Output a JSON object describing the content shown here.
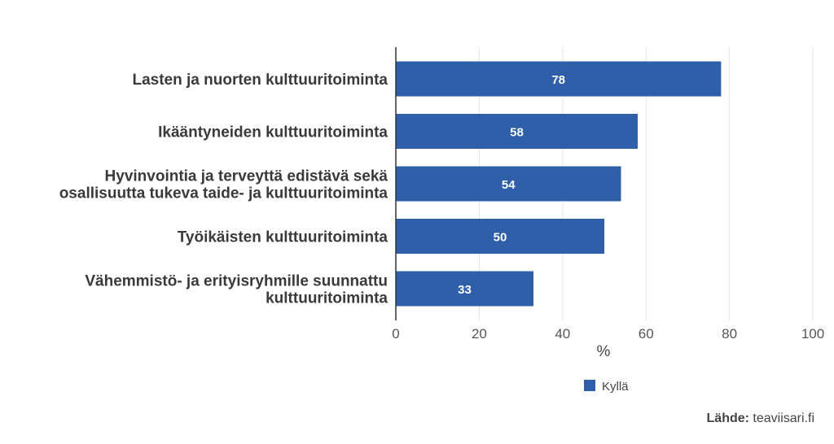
{
  "chart_data": {
    "type": "bar",
    "orientation": "horizontal",
    "categories": [
      [
        "Lasten ja nuorten kulttuuritoiminta"
      ],
      [
        "Ikääntyneiden kulttuuritoiminta"
      ],
      [
        "Hyvinvointia ja terveyttä edistävä sekä",
        "osallisuutta tukeva taide- ja kulttuuritoiminta"
      ],
      [
        "Työikäisten kulttuuritoiminta"
      ],
      [
        "Vähemmistö- ja erityisryhmille suunnattu",
        "kulttuuritoiminta"
      ]
    ],
    "series": [
      {
        "name": "Kyllä",
        "values": [
          78,
          58,
          54,
          50,
          33
        ],
        "color": "#2e5fa8"
      }
    ],
    "xlabel": "%",
    "xlim": [
      0,
      100
    ],
    "xticks": [
      "0",
      "20",
      "40",
      "60",
      "80",
      "100"
    ],
    "grid": true,
    "legend_position": "bottom"
  },
  "source": {
    "label": "Lähde:",
    "value": "teaviisari.fi"
  }
}
